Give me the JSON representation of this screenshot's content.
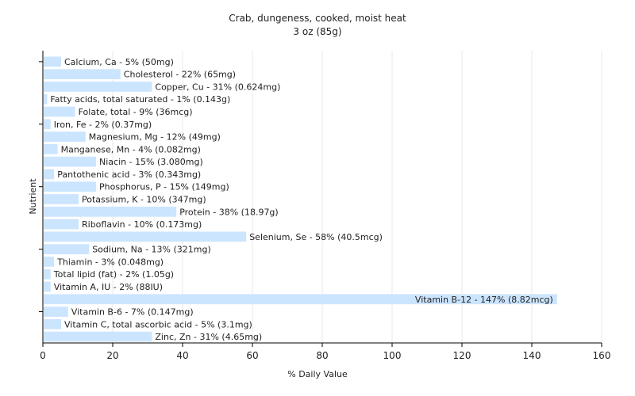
{
  "chart_data": {
    "type": "bar",
    "orientation": "horizontal",
    "title": "Crab, dungeness, cooked, moist heat",
    "subtitle": "3 oz (85g)",
    "xlabel": "% Daily Value",
    "ylabel": "Nutrient",
    "xlim": [
      0,
      160
    ],
    "xticks": [
      0,
      20,
      40,
      60,
      80,
      100,
      120,
      140,
      160
    ],
    "grid": true,
    "bar_color": "#cce5ff",
    "categories": [
      "Calcium, Ca",
      "Cholesterol",
      "Copper, Cu",
      "Fatty acids, total saturated",
      "Folate, total",
      "Iron, Fe",
      "Magnesium, Mg",
      "Manganese, Mn",
      "Niacin",
      "Pantothenic acid",
      "Phosphorus, P",
      "Potassium, K",
      "Protein",
      "Riboflavin",
      "Selenium, Se",
      "Sodium, Na",
      "Thiamin",
      "Total lipid (fat)",
      "Vitamin A, IU",
      "Vitamin B-12",
      "Vitamin B-6",
      "Vitamin C, total ascorbic acid",
      "Zinc, Zn"
    ],
    "values": [
      5,
      22,
      31,
      1,
      9,
      2,
      12,
      4,
      15,
      3,
      15,
      10,
      38,
      10,
      58,
      13,
      3,
      2,
      2,
      147,
      7,
      5,
      31
    ],
    "labels": [
      "Calcium, Ca - 5% (50mg)",
      "Cholesterol - 22% (65mg)",
      "Copper, Cu - 31% (0.624mg)",
      "Fatty acids, total saturated - 1% (0.143g)",
      "Folate, total - 9% (36mcg)",
      "Iron, Fe - 2% (0.37mg)",
      "Magnesium, Mg - 12% (49mg)",
      "Manganese, Mn - 4% (0.082mg)",
      "Niacin - 15% (3.080mg)",
      "Pantothenic acid - 3% (0.343mg)",
      "Phosphorus, P - 15% (149mg)",
      "Potassium, K - 10% (347mg)",
      "Protein - 38% (18.97g)",
      "Riboflavin - 10% (0.173mg)",
      "Selenium, Se - 58% (40.5mcg)",
      "Sodium, Na - 13% (321mg)",
      "Thiamin - 3% (0.048mg)",
      "Total lipid (fat) - 2% (1.05g)",
      "Vitamin A, IU - 2% (88IU)",
      "Vitamin B-12 - 147% (8.82mcg)",
      "Vitamin B-6 - 7% (0.147mg)",
      "Vitamin C, total ascorbic acid - 5% (3.1mg)",
      "Zinc, Zn - 31% (4.65mg)"
    ]
  }
}
